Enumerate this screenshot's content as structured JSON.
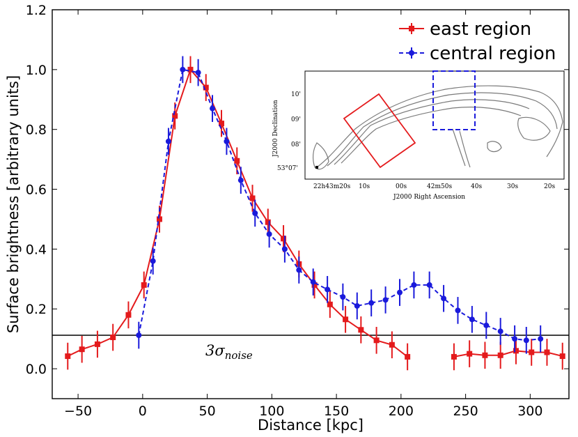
{
  "chart_data": {
    "type": "line",
    "title": "",
    "xlabel": "Distance [kpc]",
    "ylabel": "Surface brightness [arbitrary units]",
    "xlim": [
      -70,
      330
    ],
    "ylim": [
      -0.1,
      1.2
    ],
    "xticks": [
      -50,
      0,
      50,
      100,
      150,
      200,
      250,
      300
    ],
    "xtick_labels": [
      "−50",
      "0",
      "50",
      "100",
      "150",
      "200",
      "250",
      "300"
    ],
    "yticks": [
      0.0,
      0.2,
      0.4,
      0.6,
      0.8,
      1.0,
      1.2
    ],
    "ytick_labels": [
      "0.0",
      "0.2",
      "0.4",
      "0.6",
      "0.8",
      "1.0",
      "1.2"
    ],
    "legend_position": "top-right",
    "series": [
      {
        "name": "east region",
        "color": "#e41a1c",
        "marker": "square",
        "line": "solid",
        "segments": [
          {
            "x": [
              -58,
              -47,
              -35,
              -23,
              -11,
              1,
              13,
              25,
              37,
              49,
              61,
              73,
              85,
              97,
              109,
              121,
              133,
              145,
              157,
              169,
              181,
              193,
              205
            ],
            "y": [
              0.042,
              0.065,
              0.082,
              0.105,
              0.18,
              0.28,
              0.5,
              0.845,
              1.0,
              0.94,
              0.82,
              0.695,
              0.57,
              0.49,
              0.435,
              0.35,
              0.28,
              0.215,
              0.165,
              0.13,
              0.095,
              0.08,
              0.04
            ],
            "err": [
              0.045,
              0.045,
              0.045,
              0.045,
              0.045,
              0.045,
              0.045,
              0.045,
              0.045,
              0.045,
              0.045,
              0.045,
              0.045,
              0.045,
              0.045,
              0.045,
              0.045,
              0.045,
              0.045,
              0.045,
              0.045,
              0.045,
              0.045
            ]
          },
          {
            "x": [
              241,
              253,
              265,
              277,
              289,
              301,
              313,
              325
            ],
            "y": [
              0.04,
              0.05,
              0.045,
              0.045,
              0.06,
              0.055,
              0.055,
              0.042
            ],
            "err": [
              0.045,
              0.045,
              0.045,
              0.045,
              0.045,
              0.045,
              0.045,
              0.045
            ]
          }
        ]
      },
      {
        "name": "central region",
        "color": "#1a1adb",
        "marker": "circle",
        "line": "dashed",
        "segments": [
          {
            "x": [
              -3,
              8,
              20,
              31,
              43,
              54,
              65,
              76,
              87,
              98,
              110,
              121,
              132,
              143,
              155,
              166,
              177,
              188,
              199,
              210,
              222,
              233,
              244,
              255,
              266,
              277,
              288,
              297,
              308
            ],
            "y": [
              0.112,
              0.36,
              0.76,
              1.0,
              0.99,
              0.87,
              0.76,
              0.63,
              0.52,
              0.45,
              0.4,
              0.33,
              0.29,
              0.265,
              0.24,
              0.21,
              0.22,
              0.23,
              0.255,
              0.28,
              0.28,
              0.235,
              0.195,
              0.165,
              0.145,
              0.125,
              0.1,
              0.095,
              0.1
            ],
            "err": [
              0.045,
              0.045,
              0.045,
              0.045,
              0.045,
              0.045,
              0.045,
              0.045,
              0.045,
              0.045,
              0.045,
              0.045,
              0.045,
              0.045,
              0.045,
              0.045,
              0.045,
              0.045,
              0.045,
              0.045,
              0.045,
              0.045,
              0.045,
              0.045,
              0.045,
              0.045,
              0.045,
              0.045,
              0.045
            ]
          }
        ]
      }
    ],
    "hline": {
      "y": 0.112,
      "label": "3σ",
      "label_sub": "noise"
    },
    "inset": {
      "xlabel": "J2000 Right Ascension",
      "ylabel": "J2000 Declination",
      "xtick_labels": [
        "22h43m20s",
        "10s",
        "00s",
        "42m50s",
        "40s",
        "30s",
        "20s"
      ],
      "ytick_labels": [
        "10'",
        "09'",
        "08'",
        "53°07'"
      ],
      "east_box_color": "#e41a1c",
      "central_box_color": "#1a1adb",
      "contour_color": "#808080"
    }
  }
}
